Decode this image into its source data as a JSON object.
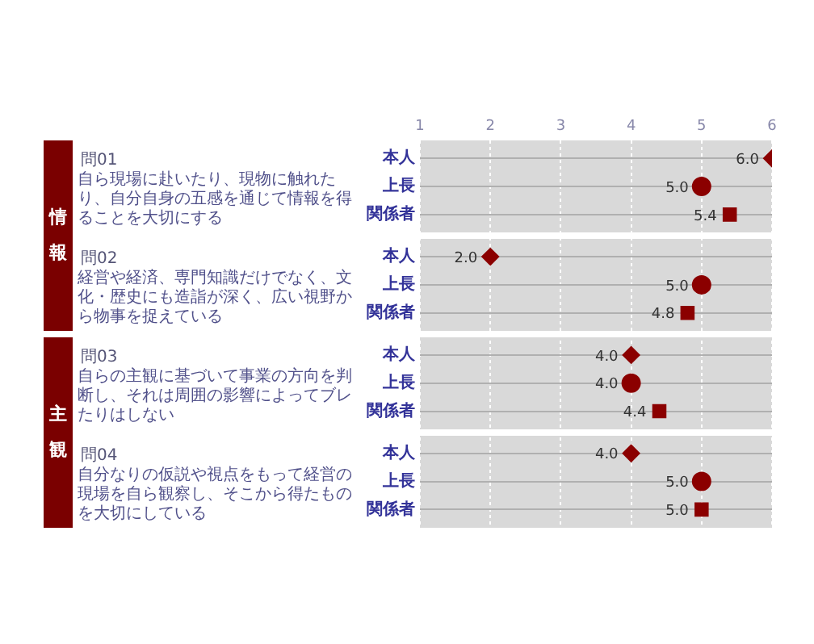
{
  "chart_data": {
    "type": "scatter",
    "orientation": "horizontal",
    "annotations": [
      "情報",
      "問01",
      "自ら現場に赴いたり、現物に触れたり、自分自身の五感を通じて情報を得ることを大切にする",
      "問02",
      "経営や経済、専門知識だけでなく、文化・歴史にも造詣が深く、広い視野から物事を捉えている",
      "主観",
      "問03",
      "自らの主観に基づいて事業の方向を判断し、それは周囲の影響によってブレたりはしない",
      "問04",
      "自分なりの仮説や視点をもって経営の現場を自ら観察し、そこから得たものを大切にしている"
    ],
    "categories": [
      "本人",
      "上長",
      "関係者",
      "本人",
      "上長",
      "関係者",
      "本人",
      "上長",
      "関係者",
      "本人",
      "上長",
      "関係者"
    ],
    "series": [
      {
        "color": "#8b0000",
        "marker": "diamond",
        "values": [
          6.0,
          null,
          null,
          2.0,
          null,
          null,
          4.0,
          null,
          null,
          4.0,
          null,
          null
        ],
        "value_labels": [
          "6.0",
          null,
          null,
          "2.0",
          null,
          null,
          "4.0",
          null,
          null,
          "4.0",
          null,
          null
        ]
      },
      {
        "color": "#8b0000",
        "marker": "circle",
        "values": [
          null,
          5.0,
          null,
          null,
          5.0,
          null,
          null,
          4.0,
          null,
          null,
          5.0,
          null
        ],
        "value_labels": [
          null,
          "5.0",
          null,
          null,
          "5.0",
          null,
          null,
          "4.0",
          null,
          null,
          "5.0",
          null
        ]
      },
      {
        "color": "#8b0000",
        "marker": "square",
        "values": [
          null,
          null,
          5.4,
          null,
          null,
          4.8,
          null,
          null,
          4.4,
          null,
          null,
          5.0
        ],
        "value_labels": [
          null,
          null,
          "5.4",
          null,
          null,
          "4.8",
          null,
          null,
          "4.4",
          null,
          null,
          "5.0"
        ]
      }
    ],
    "xlim": [
      1,
      6
    ],
    "xticks": [
      1,
      2,
      3,
      4,
      5,
      6
    ],
    "grid": true
  }
}
